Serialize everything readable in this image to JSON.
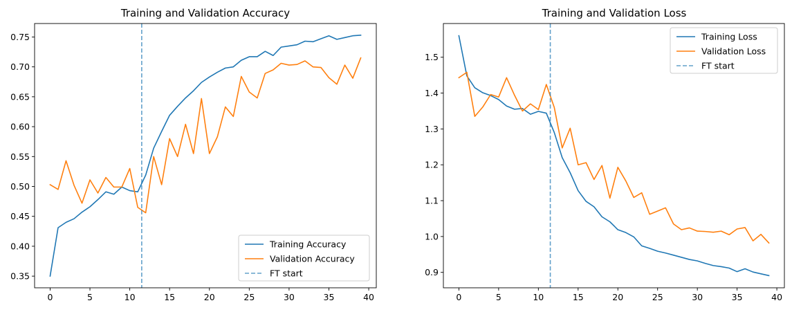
{
  "chart_data": [
    {
      "type": "line",
      "title": "Training and Validation Accuracy",
      "xlabel": "",
      "ylabel": "",
      "xlim": [
        -1.95,
        40.95
      ],
      "ylim": [
        0.3305,
        0.7725
      ],
      "xticks": [
        0,
        5,
        10,
        15,
        20,
        25,
        30,
        35,
        40
      ],
      "xtick_labels": [
        "0",
        "5",
        "10",
        "15",
        "20",
        "25",
        "30",
        "35",
        "40"
      ],
      "yticks": [
        0.35,
        0.4,
        0.45,
        0.5,
        0.55,
        0.6,
        0.65,
        0.7,
        0.75
      ],
      "ytick_labels": [
        "0.35",
        "0.40",
        "0.45",
        "0.50",
        "0.55",
        "0.60",
        "0.65",
        "0.70",
        "0.75"
      ],
      "grid": false,
      "legend_position": "lower-right",
      "series": [
        {
          "name": "Training Accuracy",
          "color": "#1f77b4",
          "style": "solid",
          "x": [
            0,
            1,
            2,
            3,
            4,
            5,
            6,
            7,
            8,
            9,
            10,
            11,
            12,
            13,
            14,
            15,
            16,
            17,
            18,
            19,
            20,
            21,
            22,
            23,
            24,
            25,
            26,
            27,
            28,
            29,
            30,
            31,
            32,
            33,
            34,
            35,
            36,
            37,
            38,
            39
          ],
          "values": [
            0.35,
            0.431,
            0.44,
            0.446,
            0.457,
            0.466,
            0.478,
            0.491,
            0.487,
            0.499,
            0.493,
            0.491,
            0.519,
            0.564,
            0.592,
            0.619,
            0.634,
            0.648,
            0.66,
            0.674,
            0.683,
            0.691,
            0.698,
            0.7,
            0.711,
            0.717,
            0.717,
            0.726,
            0.719,
            0.733,
            0.735,
            0.737,
            0.743,
            0.742,
            0.747,
            0.752,
            0.746,
            0.749,
            0.752,
            0.753
          ]
        },
        {
          "name": "Validation Accuracy",
          "color": "#ff7f0e",
          "style": "solid",
          "x": [
            0,
            1,
            2,
            3,
            4,
            5,
            6,
            7,
            8,
            9,
            10,
            11,
            12,
            13,
            14,
            15,
            16,
            17,
            18,
            19,
            20,
            21,
            22,
            23,
            24,
            25,
            26,
            27,
            28,
            29,
            30,
            31,
            32,
            33,
            34,
            35,
            36,
            37,
            38,
            39
          ],
          "values": [
            0.503,
            0.495,
            0.543,
            0.502,
            0.472,
            0.511,
            0.489,
            0.515,
            0.499,
            0.499,
            0.53,
            0.465,
            0.456,
            0.55,
            0.503,
            0.58,
            0.55,
            0.604,
            0.555,
            0.647,
            0.555,
            0.583,
            0.633,
            0.617,
            0.684,
            0.658,
            0.648,
            0.689,
            0.695,
            0.706,
            0.703,
            0.704,
            0.71,
            0.7,
            0.699,
            0.682,
            0.671,
            0.703,
            0.681,
            0.715
          ]
        }
      ],
      "vline": {
        "name": "FT start",
        "x": 11.5,
        "color": "#1f77b4",
        "style": "dashed"
      }
    },
    {
      "type": "line",
      "title": "Training and Validation Loss",
      "xlabel": "",
      "ylabel": "",
      "xlim": [
        -1.95,
        40.95
      ],
      "ylim": [
        0.857,
        1.594
      ],
      "xticks": [
        0,
        5,
        10,
        15,
        20,
        25,
        30,
        35,
        40
      ],
      "xtick_labels": [
        "0",
        "5",
        "10",
        "15",
        "20",
        "25",
        "30",
        "35",
        "40"
      ],
      "yticks": [
        0.9,
        1.0,
        1.1,
        1.2,
        1.3,
        1.4,
        1.5
      ],
      "ytick_labels": [
        "0.9",
        "1.0",
        "1.1",
        "1.2",
        "1.3",
        "1.4",
        "1.5"
      ],
      "grid": false,
      "legend_position": "upper-right",
      "series": [
        {
          "name": "Training Loss",
          "color": "#1f77b4",
          "style": "solid",
          "x": [
            0,
            1,
            2,
            3,
            4,
            5,
            6,
            7,
            8,
            9,
            10,
            11,
            12,
            13,
            14,
            15,
            16,
            17,
            18,
            19,
            20,
            21,
            22,
            23,
            24,
            25,
            26,
            27,
            28,
            29,
            30,
            31,
            32,
            33,
            34,
            35,
            36,
            37,
            38,
            39
          ],
          "values": [
            1.56,
            1.448,
            1.415,
            1.401,
            1.393,
            1.382,
            1.364,
            1.355,
            1.357,
            1.341,
            1.349,
            1.344,
            1.29,
            1.22,
            1.178,
            1.128,
            1.098,
            1.083,
            1.055,
            1.041,
            1.019,
            1.011,
            0.999,
            0.974,
            0.967,
            0.959,
            0.954,
            0.948,
            0.942,
            0.936,
            0.932,
            0.925,
            0.919,
            0.916,
            0.912,
            0.902,
            0.91,
            0.901,
            0.896,
            0.891
          ]
        },
        {
          "name": "Validation Loss",
          "color": "#ff7f0e",
          "style": "solid",
          "x": [
            0,
            1,
            2,
            3,
            4,
            5,
            6,
            7,
            8,
            9,
            10,
            11,
            12,
            13,
            14,
            15,
            16,
            17,
            18,
            19,
            20,
            21,
            22,
            23,
            24,
            25,
            26,
            27,
            28,
            29,
            30,
            31,
            32,
            33,
            34,
            35,
            36,
            37,
            38,
            39
          ],
          "values": [
            1.443,
            1.458,
            1.335,
            1.361,
            1.396,
            1.389,
            1.443,
            1.394,
            1.35,
            1.37,
            1.354,
            1.424,
            1.36,
            1.247,
            1.302,
            1.2,
            1.206,
            1.159,
            1.198,
            1.107,
            1.193,
            1.155,
            1.109,
            1.122,
            1.062,
            1.071,
            1.08,
            1.035,
            1.019,
            1.024,
            1.015,
            1.014,
            1.012,
            1.015,
            1.005,
            1.021,
            1.025,
            0.988,
            1.006,
            0.982
          ]
        }
      ],
      "vline": {
        "name": "FT start",
        "x": 11.5,
        "color": "#1f77b4",
        "style": "dashed"
      }
    }
  ]
}
